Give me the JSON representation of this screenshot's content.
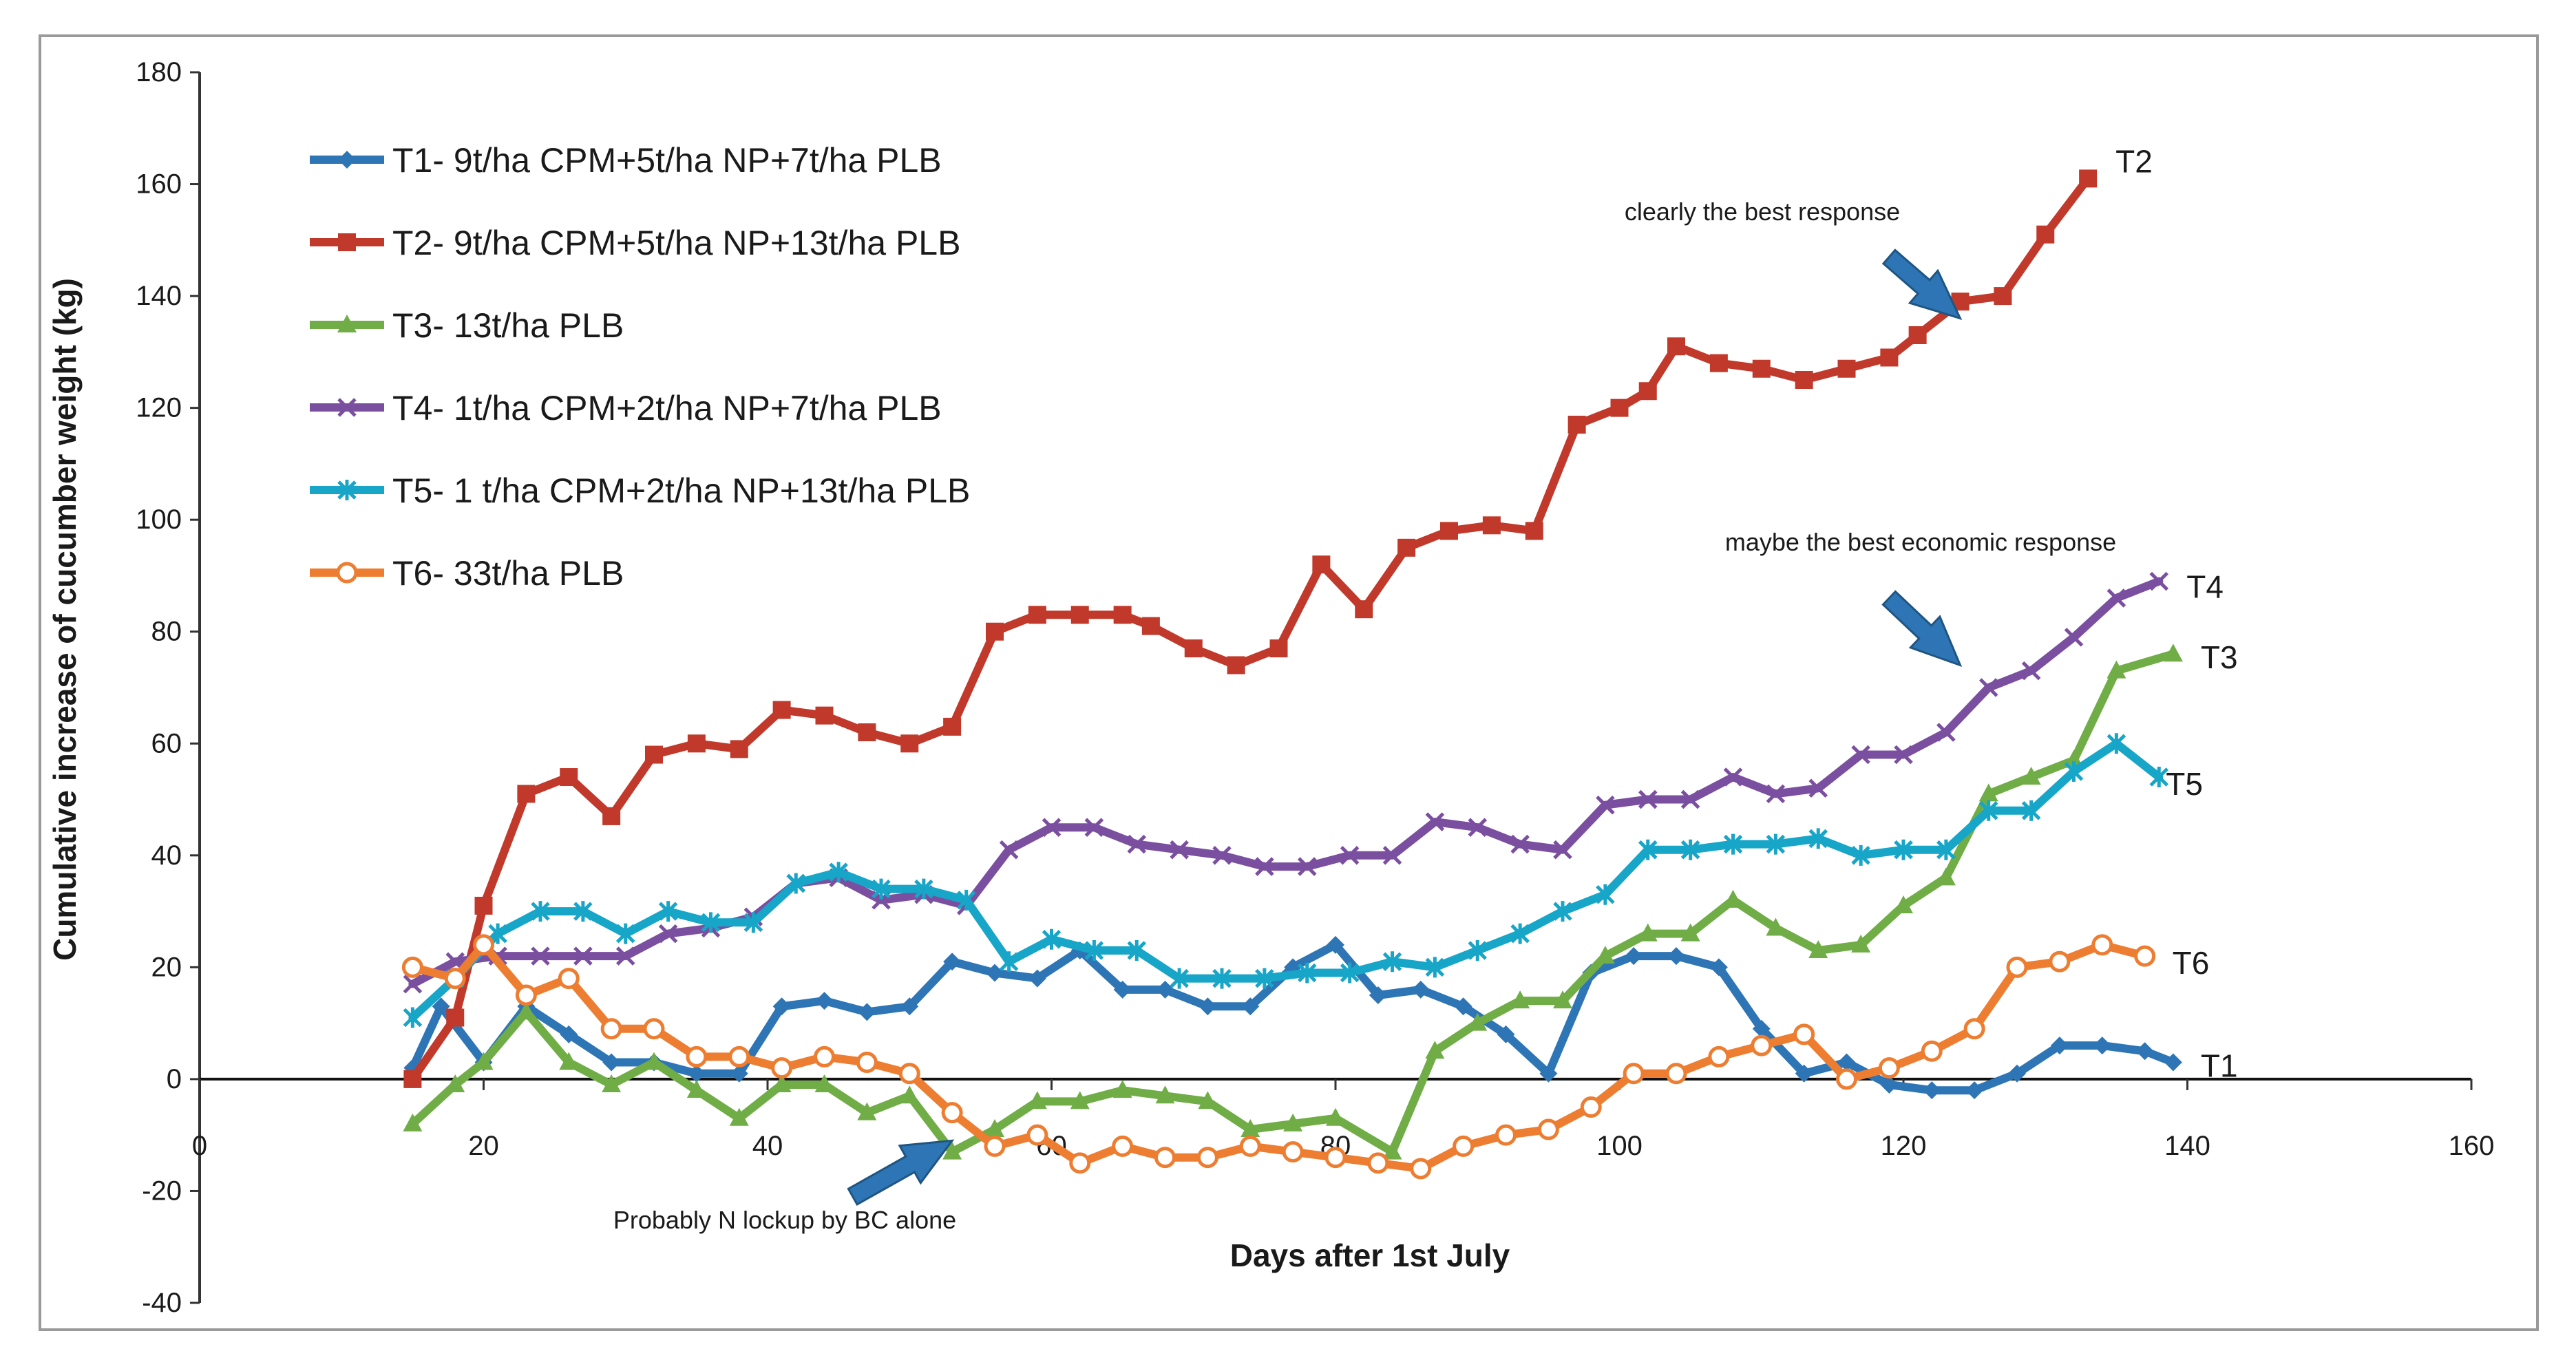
{
  "chart_data": {
    "type": "line",
    "xlabel": "Days after 1st July",
    "ylabel": "Cumulative increase of cucumber weight (kg)",
    "xlim": [
      0,
      160
    ],
    "ylim": [
      -40,
      180
    ],
    "x_ticks": [
      0,
      20,
      40,
      60,
      80,
      100,
      120,
      140,
      160
    ],
    "y_ticks": [
      -40,
      -20,
      0,
      20,
      40,
      60,
      80,
      100,
      120,
      140,
      160,
      180
    ],
    "grid": false,
    "legend_position": "top-left",
    "series": [
      {
        "name": "T1- 9t/ha CPM+5t/ha NP+7t/ha PLB",
        "end_label": "T1",
        "color": "#2e75b6",
        "marker": "diamond",
        "points": [
          [
            15,
            2
          ],
          [
            17,
            13
          ],
          [
            20,
            3
          ],
          [
            23,
            13
          ],
          [
            26,
            8
          ],
          [
            29,
            3
          ],
          [
            32,
            3
          ],
          [
            35,
            1
          ],
          [
            38,
            1
          ],
          [
            41,
            13
          ],
          [
            44,
            14
          ],
          [
            47,
            12
          ],
          [
            50,
            13
          ],
          [
            53,
            21
          ],
          [
            56,
            19
          ],
          [
            59,
            18
          ],
          [
            62,
            23
          ],
          [
            65,
            16
          ],
          [
            68,
            16
          ],
          [
            71,
            13
          ],
          [
            74,
            13
          ],
          [
            77,
            20
          ],
          [
            80,
            24
          ],
          [
            83,
            15
          ],
          [
            86,
            16
          ],
          [
            89,
            13
          ],
          [
            92,
            8
          ],
          [
            95,
            1
          ],
          [
            98,
            19
          ],
          [
            101,
            22
          ],
          [
            104,
            22
          ],
          [
            107,
            20
          ],
          [
            110,
            9
          ],
          [
            113,
            1
          ],
          [
            116,
            3
          ],
          [
            119,
            -1
          ],
          [
            122,
            -2
          ],
          [
            125,
            -2
          ],
          [
            128,
            1
          ],
          [
            131,
            6
          ],
          [
            134,
            6
          ],
          [
            137,
            5
          ],
          [
            139,
            3
          ]
        ]
      },
      {
        "name": "T2- 9t/ha CPM+5t/ha NP+13t/ha PLB",
        "end_label": "T2",
        "color": "#c0392b",
        "marker": "square",
        "points": [
          [
            15,
            0
          ],
          [
            18,
            11
          ],
          [
            20,
            31
          ],
          [
            23,
            51
          ],
          [
            26,
            54
          ],
          [
            29,
            47
          ],
          [
            32,
            58
          ],
          [
            35,
            60
          ],
          [
            38,
            59
          ],
          [
            41,
            66
          ],
          [
            44,
            65
          ],
          [
            47,
            62
          ],
          [
            50,
            60
          ],
          [
            53,
            63
          ],
          [
            56,
            80
          ],
          [
            59,
            83
          ],
          [
            62,
            83
          ],
          [
            65,
            83
          ],
          [
            67,
            81
          ],
          [
            70,
            77
          ],
          [
            73,
            74
          ],
          [
            76,
            77
          ],
          [
            79,
            92
          ],
          [
            82,
            84
          ],
          [
            85,
            95
          ],
          [
            88,
            98
          ],
          [
            91,
            99
          ],
          [
            94,
            98
          ],
          [
            97,
            117
          ],
          [
            100,
            120
          ],
          [
            102,
            123
          ],
          [
            104,
            131
          ],
          [
            107,
            128
          ],
          [
            110,
            127
          ],
          [
            113,
            125
          ],
          [
            116,
            127
          ],
          [
            119,
            129
          ],
          [
            121,
            133
          ],
          [
            124,
            139
          ],
          [
            127,
            140
          ],
          [
            130,
            151
          ],
          [
            133,
            161
          ]
        ]
      },
      {
        "name": "T3- 13t/ha PLB",
        "end_label": "T3",
        "color": "#70ad47",
        "marker": "triangle",
        "points": [
          [
            15,
            -8
          ],
          [
            18,
            -1
          ],
          [
            20,
            3
          ],
          [
            23,
            12
          ],
          [
            26,
            3
          ],
          [
            29,
            -1
          ],
          [
            32,
            3
          ],
          [
            35,
            -2
          ],
          [
            38,
            -7
          ],
          [
            41,
            -1
          ],
          [
            44,
            -1
          ],
          [
            47,
            -6
          ],
          [
            50,
            -3
          ],
          [
            53,
            -13
          ],
          [
            56,
            -9
          ],
          [
            59,
            -4
          ],
          [
            62,
            -4
          ],
          [
            65,
            -2
          ],
          [
            68,
            -3
          ],
          [
            71,
            -4
          ],
          [
            74,
            -9
          ],
          [
            77,
            -8
          ],
          [
            80,
            -7
          ],
          [
            84,
            -13
          ],
          [
            87,
            5
          ],
          [
            90,
            10
          ],
          [
            93,
            14
          ],
          [
            96,
            14
          ],
          [
            99,
            22
          ],
          [
            102,
            26
          ],
          [
            105,
            26
          ],
          [
            108,
            32
          ],
          [
            111,
            27
          ],
          [
            114,
            23
          ],
          [
            117,
            24
          ],
          [
            120,
            31
          ],
          [
            123,
            36
          ],
          [
            126,
            51
          ],
          [
            129,
            54
          ],
          [
            132,
            57
          ],
          [
            135,
            73
          ],
          [
            139,
            76
          ]
        ]
      },
      {
        "name": "T4- 1t/ha CPM+2t/ha NP+7t/ha PLB",
        "end_label": "T4",
        "color": "#7b4fa0",
        "marker": "x",
        "points": [
          [
            15,
            17
          ],
          [
            18,
            21
          ],
          [
            21,
            22
          ],
          [
            24,
            22
          ],
          [
            27,
            22
          ],
          [
            30,
            22
          ],
          [
            33,
            26
          ],
          [
            36,
            27
          ],
          [
            39,
            29
          ],
          [
            42,
            35
          ],
          [
            45,
            36
          ],
          [
            48,
            32
          ],
          [
            51,
            33
          ],
          [
            54,
            31
          ],
          [
            57,
            41
          ],
          [
            60,
            45
          ],
          [
            63,
            45
          ],
          [
            66,
            42
          ],
          [
            69,
            41
          ],
          [
            72,
            40
          ],
          [
            75,
            38
          ],
          [
            78,
            38
          ],
          [
            81,
            40
          ],
          [
            84,
            40
          ],
          [
            87,
            46
          ],
          [
            90,
            45
          ],
          [
            93,
            42
          ],
          [
            96,
            41
          ],
          [
            99,
            49
          ],
          [
            102,
            50
          ],
          [
            105,
            50
          ],
          [
            108,
            54
          ],
          [
            111,
            51
          ],
          [
            114,
            52
          ],
          [
            117,
            58
          ],
          [
            120,
            58
          ],
          [
            123,
            62
          ],
          [
            126,
            70
          ],
          [
            129,
            73
          ],
          [
            132,
            79
          ],
          [
            135,
            86
          ],
          [
            138,
            89
          ]
        ]
      },
      {
        "name": "T5- 1 t/ha CPM+2t/ha NP+13t/ha PLB",
        "end_label": "T5",
        "color": "#17a5c8",
        "marker": "star",
        "points": [
          [
            15,
            11
          ],
          [
            18,
            18
          ],
          [
            21,
            26
          ],
          [
            24,
            30
          ],
          [
            27,
            30
          ],
          [
            30,
            26
          ],
          [
            33,
            30
          ],
          [
            36,
            28
          ],
          [
            39,
            28
          ],
          [
            42,
            35
          ],
          [
            45,
            37
          ],
          [
            48,
            34
          ],
          [
            51,
            34
          ],
          [
            54,
            32
          ],
          [
            57,
            21
          ],
          [
            60,
            25
          ],
          [
            63,
            23
          ],
          [
            66,
            23
          ],
          [
            69,
            18
          ],
          [
            72,
            18
          ],
          [
            75,
            18
          ],
          [
            78,
            19
          ],
          [
            81,
            19
          ],
          [
            84,
            21
          ],
          [
            87,
            20
          ],
          [
            90,
            23
          ],
          [
            93,
            26
          ],
          [
            96,
            30
          ],
          [
            99,
            33
          ],
          [
            102,
            41
          ],
          [
            105,
            41
          ],
          [
            108,
            42
          ],
          [
            111,
            42
          ],
          [
            114,
            43
          ],
          [
            117,
            40
          ],
          [
            120,
            41
          ],
          [
            123,
            41
          ],
          [
            126,
            48
          ],
          [
            129,
            48
          ],
          [
            132,
            55
          ],
          [
            135,
            60
          ],
          [
            138,
            54
          ]
        ]
      },
      {
        "name": "T6- 33t/ha PLB",
        "end_label": "T6",
        "color": "#ed7d31",
        "marker": "circle",
        "points": [
          [
            15,
            20
          ],
          [
            18,
            18
          ],
          [
            20,
            24
          ],
          [
            23,
            15
          ],
          [
            26,
            18
          ],
          [
            29,
            9
          ],
          [
            32,
            9
          ],
          [
            35,
            4
          ],
          [
            38,
            4
          ],
          [
            41,
            2
          ],
          [
            44,
            4
          ],
          [
            47,
            3
          ],
          [
            50,
            1
          ],
          [
            53,
            -6
          ],
          [
            56,
            -12
          ],
          [
            59,
            -10
          ],
          [
            62,
            -15
          ],
          [
            65,
            -12
          ],
          [
            68,
            -14
          ],
          [
            71,
            -14
          ],
          [
            74,
            -12
          ],
          [
            77,
            -13
          ],
          [
            80,
            -14
          ],
          [
            83,
            -15
          ],
          [
            86,
            -16
          ],
          [
            89,
            -12
          ],
          [
            92,
            -10
          ],
          [
            95,
            -9
          ],
          [
            98,
            -5
          ],
          [
            101,
            1
          ],
          [
            104,
            1
          ],
          [
            107,
            4
          ],
          [
            110,
            6
          ],
          [
            113,
            8
          ],
          [
            116,
            0
          ],
          [
            119,
            2
          ],
          [
            122,
            5
          ],
          [
            125,
            9
          ],
          [
            128,
            20
          ],
          [
            131,
            21
          ],
          [
            134,
            24
          ],
          [
            137,
            22
          ]
        ]
      }
    ],
    "annotations": [
      {
        "id": "best",
        "text": "clearly the best response",
        "arrow_from": [
          119,
          147
        ],
        "arrow_to": [
          124,
          136
        ]
      },
      {
        "id": "economic",
        "text": "maybe the best economic response",
        "arrow_from": [
          119,
          86
        ],
        "arrow_to": [
          124,
          74
        ]
      },
      {
        "id": "lockup",
        "text": "Probably N lockup by BC alone",
        "arrow_from": [
          46,
          -21
        ],
        "arrow_to": [
          53,
          -11
        ]
      }
    ]
  }
}
